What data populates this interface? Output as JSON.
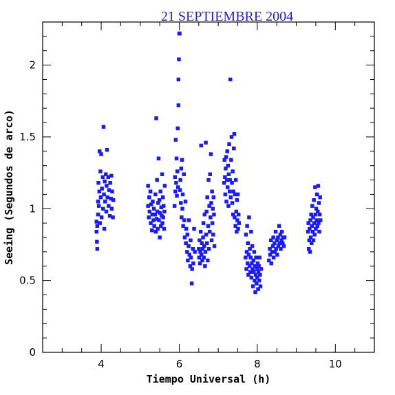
{
  "chart_data": {
    "type": "scatter",
    "title": "21 SEPTIEMBRE 2004",
    "xlabel": "Tiempo Universal (h)",
    "ylabel": "Seeing (Segundos de arco)",
    "xlim": [
      2.5,
      11.0
    ],
    "ylim": [
      0,
      2.3
    ],
    "xticks": [
      4,
      6,
      8,
      10
    ],
    "yticks": [
      0,
      0.5,
      1,
      1.5,
      2
    ],
    "xtick_labels": [
      "4",
      "6",
      "8",
      "10"
    ],
    "ytick_labels": [
      "0",
      "0.5",
      "1",
      "1.5",
      "2"
    ],
    "marker_color": "#1a1aff",
    "grid": false,
    "series": [
      {
        "values": [
          [
            3.88,
            0.84
          ],
          [
            3.88,
            0.91
          ],
          [
            3.89,
            0.77
          ],
          [
            3.9,
            0.72
          ],
          [
            3.9,
            0.88
          ],
          [
            3.92,
            1.05
          ],
          [
            3.92,
            0.96
          ],
          [
            3.93,
            1.18
          ],
          [
            3.94,
            1.02
          ],
          [
            3.95,
            1.12
          ],
          [
            3.96,
            1.4
          ],
          [
            3.97,
            0.9
          ],
          [
            3.98,
            1.26
          ],
          [
            3.99,
            1.08
          ],
          [
            4.0,
            1.38
          ],
          [
            4.01,
            0.94
          ],
          [
            4.02,
            1.14
          ],
          [
            4.04,
            1.22
          ],
          [
            4.05,
            1.0
          ],
          [
            4.06,
            1.57
          ],
          [
            4.07,
            1.1
          ],
          [
            4.08,
            0.86
          ],
          [
            4.09,
            1.19
          ],
          [
            4.1,
            1.05
          ],
          [
            4.12,
            1.24
          ],
          [
            4.13,
            0.98
          ],
          [
            4.14,
            1.16
          ],
          [
            4.15,
            1.41
          ],
          [
            4.16,
            1.08
          ],
          [
            4.18,
            1.22
          ],
          [
            4.19,
            1.02
          ],
          [
            4.2,
            1.13
          ],
          [
            4.22,
            0.95
          ],
          [
            4.23,
            1.18
          ],
          [
            4.25,
            1.07
          ],
          [
            4.26,
            1.23
          ],
          [
            4.27,
            1.0
          ],
          [
            4.28,
            1.12
          ],
          [
            4.3,
            0.94
          ],
          [
            4.31,
            1.06
          ],
          [
            5.2,
            1.02
          ],
          [
            5.2,
            1.16
          ],
          [
            5.22,
            0.94
          ],
          [
            5.23,
            1.08
          ],
          [
            5.24,
            0.98
          ],
          [
            5.26,
            1.12
          ],
          [
            5.27,
            0.9
          ],
          [
            5.28,
            1.03
          ],
          [
            5.3,
            0.85
          ],
          [
            5.31,
            0.96
          ],
          [
            5.32,
            1.05
          ],
          [
            5.34,
            0.92
          ],
          [
            5.35,
            1.0
          ],
          [
            5.36,
            0.88
          ],
          [
            5.38,
            0.96
          ],
          [
            5.39,
            1.1
          ],
          [
            5.4,
            0.84
          ],
          [
            5.41,
            1.63
          ],
          [
            5.42,
            0.93
          ],
          [
            5.43,
            1.2
          ],
          [
            5.44,
            0.98
          ],
          [
            5.45,
            0.86
          ],
          [
            5.46,
            1.04
          ],
          [
            5.47,
            1.35
          ],
          [
            5.48,
            0.92
          ],
          [
            5.49,
            1.06
          ],
          [
            5.5,
            0.8
          ],
          [
            5.51,
            0.97
          ],
          [
            5.52,
            1.12
          ],
          [
            5.53,
            0.88
          ],
          [
            5.54,
            1.01
          ],
          [
            5.55,
            0.95
          ],
          [
            5.56,
            1.24
          ],
          [
            5.57,
            0.9
          ],
          [
            5.58,
            1.08
          ],
          [
            5.59,
            0.94
          ],
          [
            5.6,
            1.02
          ],
          [
            5.61,
            0.86
          ],
          [
            5.62,
            0.98
          ],
          [
            5.63,
            1.16
          ],
          [
            5.88,
            1.02
          ],
          [
            5.89,
            1.22
          ],
          [
            5.9,
            1.12
          ],
          [
            5.91,
            1.48
          ],
          [
            5.92,
            1.18
          ],
          [
            5.93,
            1.35
          ],
          [
            5.94,
            1.09
          ],
          [
            5.95,
            1.26
          ],
          [
            5.96,
            1.56
          ],
          [
            5.97,
            1.15
          ],
          [
            5.98,
            1.72
          ],
          [
            5.98,
            1.9
          ],
          [
            5.99,
            2.04
          ],
          [
            6.0,
            2.22
          ],
          [
            6.01,
            2.22
          ],
          [
            6.02,
            1.13
          ],
          [
            6.03,
            1.2
          ],
          [
            6.04,
            1.04
          ],
          [
            6.05,
            1.28
          ],
          [
            6.06,
            0.94
          ],
          [
            6.07,
            1.34
          ],
          [
            6.08,
            1.0
          ],
          [
            6.09,
            1.1
          ],
          [
            6.1,
            0.88
          ],
          [
            6.12,
            1.24
          ],
          [
            6.13,
            0.92
          ],
          [
            6.14,
            0.8
          ],
          [
            6.16,
            1.05
          ],
          [
            6.17,
            0.76
          ],
          [
            6.18,
            0.86
          ],
          [
            6.2,
            0.7
          ],
          [
            6.21,
            0.82
          ],
          [
            6.22,
            0.64
          ],
          [
            6.24,
            0.74
          ],
          [
            6.25,
            0.92
          ],
          [
            6.26,
            0.68
          ],
          [
            6.28,
            0.6
          ],
          [
            6.29,
            0.78
          ],
          [
            6.3,
            0.66
          ],
          [
            6.32,
            0.48
          ],
          [
            6.33,
            0.58
          ],
          [
            6.35,
            0.72
          ],
          [
            6.36,
            0.62
          ],
          [
            6.38,
            0.86
          ],
          [
            6.4,
            0.7
          ],
          [
            6.5,
            0.72
          ],
          [
            6.51,
            0.66
          ],
          [
            6.52,
            0.78
          ],
          [
            6.53,
            0.62
          ],
          [
            6.54,
            0.7
          ],
          [
            6.55,
            0.84
          ],
          [
            6.56,
            1.44
          ],
          [
            6.57,
            0.68
          ],
          [
            6.58,
            0.76
          ],
          [
            6.59,
            0.64
          ],
          [
            6.6,
            0.72
          ],
          [
            6.61,
            0.8
          ],
          [
            6.62,
            0.9
          ],
          [
            6.63,
            0.66
          ],
          [
            6.64,
            0.74
          ],
          [
            6.65,
            0.96
          ],
          [
            6.66,
            0.6
          ],
          [
            6.67,
            0.7
          ],
          [
            6.68,
            1.46
          ],
          [
            6.69,
            0.82
          ],
          [
            6.7,
            0.98
          ],
          [
            6.71,
            0.76
          ],
          [
            6.72,
            1.08
          ],
          [
            6.73,
            0.64
          ],
          [
            6.74,
            0.88
          ],
          [
            6.75,
            1.2
          ],
          [
            6.76,
            0.72
          ],
          [
            6.77,
            1.02
          ],
          [
            6.78,
            0.84
          ],
          [
            6.79,
            1.24
          ],
          [
            6.8,
            0.94
          ],
          [
            6.81,
            1.38
          ],
          [
            6.82,
            1.04
          ],
          [
            6.83,
            0.78
          ],
          [
            6.84,
            1.12
          ],
          [
            6.85,
            0.9
          ],
          [
            6.86,
            1.0
          ],
          [
            6.87,
            0.82
          ],
          [
            6.88,
            1.08
          ],
          [
            6.89,
            0.96
          ],
          [
            6.9,
            0.74
          ],
          [
            7.15,
            1.18
          ],
          [
            7.16,
            1.34
          ],
          [
            7.17,
            1.22
          ],
          [
            7.18,
            1.1
          ],
          [
            7.19,
            1.28
          ],
          [
            7.2,
            1.36
          ],
          [
            7.21,
            1.05
          ],
          [
            7.22,
            1.2
          ],
          [
            7.23,
            1.4
          ],
          [
            7.24,
            1.15
          ],
          [
            7.25,
            1.3
          ],
          [
            7.26,
            1.02
          ],
          [
            7.27,
            1.24
          ],
          [
            7.28,
            1.45
          ],
          [
            7.29,
            1.12
          ],
          [
            7.3,
            1.2
          ],
          [
            7.31,
            1.9
          ],
          [
            7.32,
            1.08
          ],
          [
            7.33,
            1.34
          ],
          [
            7.34,
            1.5
          ],
          [
            7.35,
            1.18
          ],
          [
            7.36,
            1.04
          ],
          [
            7.37,
            1.26
          ],
          [
            7.38,
            0.96
          ],
          [
            7.39,
            1.12
          ],
          [
            7.4,
            1.42
          ],
          [
            7.41,
            1.52
          ],
          [
            7.42,
            0.94
          ],
          [
            7.43,
            1.1
          ],
          [
            7.44,
            0.88
          ],
          [
            7.45,
            1.2
          ],
          [
            7.46,
            0.98
          ],
          [
            7.47,
            0.84
          ],
          [
            7.48,
            1.06
          ],
          [
            7.49,
            0.92
          ],
          [
            7.5,
            1.1
          ],
          [
            7.51,
            0.86
          ],
          [
            7.52,
            0.96
          ],
          [
            7.53,
            0.9
          ],
          [
            7.7,
            0.66
          ],
          [
            7.71,
            0.82
          ],
          [
            7.72,
            0.58
          ],
          [
            7.73,
            0.7
          ],
          [
            7.74,
            0.88
          ],
          [
            7.75,
            0.62
          ],
          [
            7.76,
            0.76
          ],
          [
            7.77,
            0.54
          ],
          [
            7.78,
            0.68
          ],
          [
            7.79,
            0.94
          ],
          [
            7.8,
            0.6
          ],
          [
            7.81,
            0.72
          ],
          [
            7.82,
            0.56
          ],
          [
            7.83,
            0.66
          ],
          [
            7.84,
            0.84
          ],
          [
            7.85,
            0.52
          ],
          [
            7.86,
            0.62
          ],
          [
            7.87,
            0.74
          ],
          [
            7.88,
            0.58
          ],
          [
            7.89,
            0.46
          ],
          [
            7.9,
            0.64
          ],
          [
            7.91,
            0.56
          ],
          [
            7.92,
            0.7
          ],
          [
            7.93,
            0.5
          ],
          [
            7.94,
            0.6
          ],
          [
            7.95,
            0.42
          ],
          [
            7.96,
            0.54
          ],
          [
            7.97,
            0.66
          ],
          [
            7.98,
            0.48
          ],
          [
            7.99,
            0.58
          ],
          [
            8.0,
            0.52
          ],
          [
            8.01,
            0.62
          ],
          [
            8.02,
            0.44
          ],
          [
            8.03,
            0.56
          ],
          [
            8.04,
            0.6
          ],
          [
            8.05,
            0.5
          ],
          [
            8.06,
            0.66
          ],
          [
            8.07,
            0.54
          ],
          [
            8.08,
            0.46
          ],
          [
            8.1,
            0.58
          ],
          [
            8.3,
            0.64
          ],
          [
            8.32,
            0.72
          ],
          [
            8.33,
            0.68
          ],
          [
            8.35,
            0.78
          ],
          [
            8.36,
            0.62
          ],
          [
            8.38,
            0.7
          ],
          [
            8.4,
            0.74
          ],
          [
            8.41,
            0.8
          ],
          [
            8.42,
            0.66
          ],
          [
            8.44,
            0.76
          ],
          [
            8.45,
            0.7
          ],
          [
            8.47,
            0.84
          ],
          [
            8.48,
            0.72
          ],
          [
            8.5,
            0.78
          ],
          [
            8.51,
            0.68
          ],
          [
            8.53,
            0.8
          ],
          [
            8.54,
            0.74
          ],
          [
            8.56,
            0.88
          ],
          [
            8.57,
            0.76
          ],
          [
            8.59,
            0.82
          ],
          [
            8.6,
            0.72
          ],
          [
            8.62,
            0.78
          ],
          [
            8.63,
            0.84
          ],
          [
            8.65,
            0.76
          ],
          [
            8.66,
            0.8
          ],
          [
            8.68,
            0.74
          ],
          [
            8.7,
            0.8
          ],
          [
            9.3,
            0.84
          ],
          [
            9.31,
            0.9
          ],
          [
            9.32,
            0.72
          ],
          [
            9.33,
            0.78
          ],
          [
            9.34,
            0.86
          ],
          [
            9.35,
            0.7
          ],
          [
            9.36,
            0.92
          ],
          [
            9.37,
            0.8
          ],
          [
            9.38,
            0.96
          ],
          [
            9.39,
            0.76
          ],
          [
            9.4,
            0.88
          ],
          [
            9.41,
            1.02
          ],
          [
            9.42,
            0.84
          ],
          [
            9.43,
            0.94
          ],
          [
            9.44,
            0.78
          ],
          [
            9.45,
            1.06
          ],
          [
            9.46,
            0.9
          ],
          [
            9.47,
            0.82
          ],
          [
            9.48,
            1.15
          ],
          [
            9.49,
            0.96
          ],
          [
            9.5,
            0.86
          ],
          [
            9.51,
            1.0
          ],
          [
            9.52,
            0.92
          ],
          [
            9.53,
            1.1
          ],
          [
            9.54,
            0.88
          ],
          [
            9.55,
            0.98
          ],
          [
            9.56,
            1.16
          ],
          [
            9.57,
            0.9
          ],
          [
            9.58,
            1.04
          ],
          [
            9.59,
            0.84
          ],
          [
            9.6,
            0.96
          ],
          [
            9.61,
            1.08
          ],
          [
            9.62,
            0.92
          ]
        ]
      }
    ]
  }
}
